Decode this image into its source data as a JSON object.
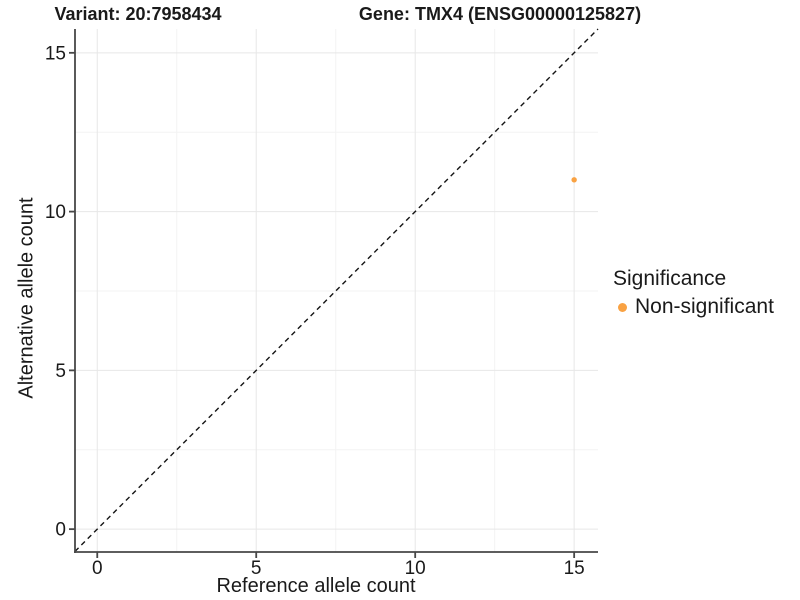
{
  "titles": {
    "variant": "Variant: 20:7958434",
    "gene": "Gene: TMX4 (ENSG00000125827)"
  },
  "axes": {
    "x": {
      "label": "Reference allele count",
      "major_ticks": [
        0,
        5,
        10,
        15
      ],
      "minor_ticks": [
        2.5,
        7.5,
        12.5
      ]
    },
    "y": {
      "label": "Alternative allele count",
      "major_ticks": [
        0,
        5,
        10,
        15
      ],
      "minor_ticks": [
        2.5,
        7.5,
        12.5
      ]
    }
  },
  "legend": {
    "title": "Significance",
    "items": [
      {
        "label": "Non-significant",
        "color": "#F9A243"
      }
    ]
  },
  "chart_data": {
    "type": "scatter",
    "title_left": "Variant: 20:7958434",
    "title_right": "Gene: TMX4 (ENSG00000125827)",
    "xlabel": "Reference allele count",
    "ylabel": "Alternative allele count",
    "xlim": [
      -0.7,
      15.75
    ],
    "ylim": [
      -0.72,
      15.75
    ],
    "x_ticks": [
      0,
      5,
      10,
      15
    ],
    "y_ticks": [
      0,
      5,
      10,
      15
    ],
    "x_minor_ticks": [
      2.5,
      7.5,
      12.5
    ],
    "y_minor_ticks": [
      2.5,
      7.5,
      12.5
    ],
    "grid": true,
    "legend_position": "right",
    "series": [
      {
        "name": "Non-significant",
        "color": "#F9A243",
        "points": [
          {
            "x": 15,
            "y": 11
          }
        ]
      }
    ],
    "reference_line": {
      "kind": "identity",
      "slope": 1,
      "intercept": 0,
      "style": "dashed",
      "color": "#141414"
    }
  },
  "colors": {
    "point": "#F9A243",
    "grid_major": "#e7e7e7",
    "grid_minor": "#f3f3f3",
    "axis_line": "#474747",
    "tick_label": "#1a1a1a",
    "dashed_line": "#141414"
  }
}
